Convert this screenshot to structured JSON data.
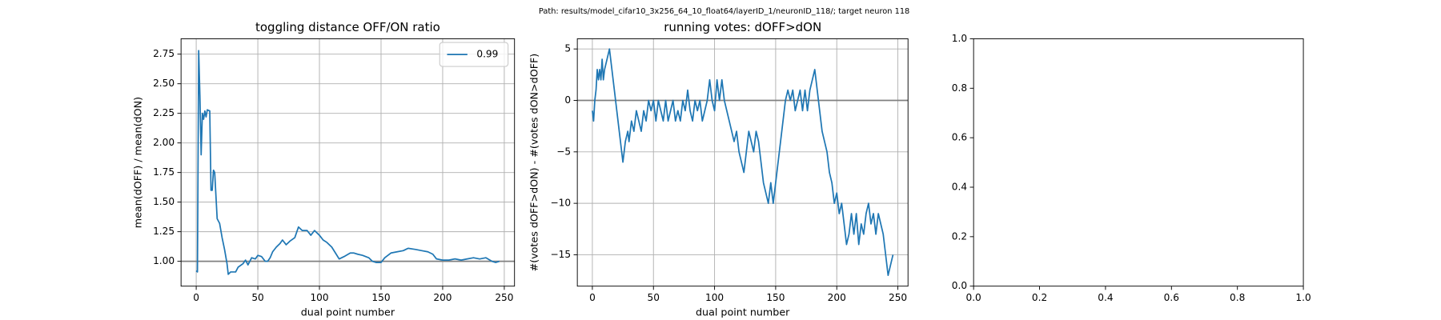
{
  "figure_title": "Path: results/model_cifar10_3x256_64_10_float64/layerID_1/neuronID_118/; target neuron 118",
  "chart_data": [
    {
      "type": "line",
      "title": "toggling distance OFF/ON ratio",
      "xlabel": "dual point number",
      "ylabel": "mean(dOFF) / mean(dON)",
      "x": [
        0,
        1,
        2,
        3,
        4,
        5,
        6,
        7,
        8,
        9,
        11,
        12,
        13,
        14,
        15,
        17,
        19,
        21,
        23,
        25,
        26,
        28,
        32,
        34,
        38,
        40,
        42,
        45,
        48,
        50,
        53,
        56,
        58,
        60,
        62,
        65,
        68,
        70,
        73,
        76,
        80,
        83,
        86,
        90,
        93,
        96,
        100,
        103,
        106,
        110,
        113,
        116,
        120,
        125,
        128,
        131,
        135,
        140,
        143,
        146,
        150,
        153,
        158,
        163,
        168,
        172,
        178,
        183,
        188,
        192,
        195,
        200,
        205,
        210,
        215,
        220,
        225,
        230,
        235,
        240,
        243,
        246
      ],
      "series": [
        {
          "name": "0.99",
          "color": "#1f77b4",
          "values": [
            0.92,
            0.91,
            2.78,
            2.4,
            1.9,
            2.25,
            2.2,
            2.27,
            2.22,
            2.28,
            2.27,
            1.6,
            1.6,
            1.77,
            1.75,
            1.36,
            1.32,
            1.2,
            1.1,
            0.98,
            0.89,
            0.91,
            0.91,
            0.95,
            0.98,
            1.01,
            0.97,
            1.03,
            1.02,
            1.05,
            1.04,
            1.0,
            1.0,
            1.03,
            1.08,
            1.12,
            1.15,
            1.18,
            1.14,
            1.17,
            1.2,
            1.29,
            1.26,
            1.26,
            1.22,
            1.26,
            1.22,
            1.18,
            1.16,
            1.12,
            1.07,
            1.02,
            1.04,
            1.07,
            1.07,
            1.06,
            1.05,
            1.03,
            1.0,
            0.99,
            0.99,
            1.03,
            1.07,
            1.08,
            1.09,
            1.11,
            1.1,
            1.09,
            1.08,
            1.06,
            1.02,
            1.01,
            1.01,
            1.02,
            1.01,
            1.02,
            1.03,
            1.02,
            1.03,
            1.0,
            0.99,
            1.0
          ]
        }
      ],
      "hline": 1,
      "xlim": [
        -12.3,
        258.3
      ],
      "ylim": [
        0.79,
        2.88
      ],
      "xticks": [
        0,
        50,
        100,
        150,
        200,
        250
      ],
      "yticks": [
        {
          "value": 1,
          "label": "1.00"
        },
        {
          "value": 1.25,
          "label": "1.25"
        },
        {
          "value": 1.5,
          "label": "1.50"
        },
        {
          "value": 1.75,
          "label": "1.75"
        },
        {
          "value": 2,
          "label": "2.00"
        },
        {
          "value": 2.25,
          "label": "2.25"
        },
        {
          "value": 2.5,
          "label": "2.50"
        },
        {
          "value": 2.75,
          "label": "2.75"
        }
      ],
      "grid": true,
      "legend": "upper right"
    },
    {
      "type": "line",
      "title": "running votes: dOFF>dON",
      "xlabel": "dual point number",
      "ylabel": "#(votes dOFF>dON) - #(votes dON>dOFF)",
      "x": [
        0,
        1,
        2,
        3,
        4,
        5,
        6,
        7,
        8,
        9,
        10,
        12,
        14,
        16,
        18,
        20,
        22,
        24,
        25,
        27,
        29,
        30,
        32,
        34,
        36,
        38,
        40,
        42,
        44,
        46,
        48,
        50,
        52,
        54,
        56,
        58,
        60,
        62,
        64,
        66,
        68,
        70,
        72,
        74,
        76,
        78,
        80,
        82,
        84,
        86,
        88,
        90,
        92,
        94,
        96,
        98,
        100,
        102,
        104,
        106,
        108,
        110,
        112,
        114,
        116,
        118,
        120,
        122,
        124,
        126,
        128,
        130,
        132,
        134,
        136,
        138,
        140,
        142,
        144,
        146,
        148,
        150,
        152,
        154,
        156,
        158,
        160,
        162,
        164,
        166,
        168,
        170,
        172,
        174,
        176,
        178,
        180,
        182,
        184,
        186,
        188,
        190,
        192,
        194,
        196,
        198,
        200,
        202,
        204,
        206,
        208,
        210,
        212,
        214,
        216,
        218,
        220,
        222,
        224,
        226,
        228,
        230,
        232,
        234,
        236,
        238,
        240,
        242,
        244,
        246
      ],
      "series": [
        {
          "color": "#1f77b4",
          "values": [
            -1,
            -2,
            0,
            1,
            3,
            2,
            3,
            2,
            4,
            2,
            3,
            4,
            5,
            3,
            1,
            -1,
            -3,
            -5,
            -6,
            -4,
            -3,
            -4,
            -2,
            -3,
            -1,
            -2,
            -3,
            -1,
            -2,
            0,
            -1,
            0,
            -2,
            0,
            -1,
            -2,
            0,
            -2,
            -1,
            0,
            -2,
            -1,
            -2,
            0,
            -1,
            1,
            -1,
            -2,
            0,
            -1,
            0,
            -2,
            -1,
            0,
            2,
            0,
            -1,
            2,
            0,
            2,
            0,
            -1,
            -2,
            -3,
            -4,
            -3,
            -5,
            -6,
            -7,
            -5,
            -3,
            -4,
            -5,
            -3,
            -4,
            -6,
            -8,
            -9,
            -10,
            -8,
            -10,
            -8,
            -6,
            -4,
            -2,
            0,
            1,
            0,
            1,
            -1,
            0,
            1,
            -1,
            1,
            -1,
            1,
            2,
            3,
            1,
            -1,
            -3,
            -4,
            -5,
            -7,
            -8,
            -10,
            -9,
            -11,
            -10,
            -12,
            -14,
            -13,
            -11,
            -13,
            -11,
            -14,
            -12,
            -13,
            -11,
            -10,
            -12,
            -11,
            -13,
            -11,
            -12,
            -13,
            -15,
            -17,
            -16,
            -15
          ]
        }
      ],
      "hline": 0,
      "xlim": [
        -12.3,
        258.3
      ],
      "ylim": [
        -18.05,
        5.99
      ],
      "xticks": [
        0,
        50,
        100,
        150,
        200,
        250
      ],
      "yticks": [
        {
          "value": -15,
          "label": "−15"
        },
        {
          "value": -10,
          "label": "−10"
        },
        {
          "value": -5,
          "label": "−5"
        },
        0,
        5
      ],
      "grid": true
    },
    {
      "type": "line",
      "xlim": [
        0,
        1
      ],
      "ylim": [
        0,
        1
      ],
      "xticks": [
        {
          "value": 0,
          "label": "0.0"
        },
        {
          "value": 0.2,
          "label": "0.2"
        },
        {
          "value": 0.4,
          "label": "0.4"
        },
        {
          "value": 0.6,
          "label": "0.6"
        },
        {
          "value": 0.8,
          "label": "0.8"
        },
        {
          "value": 1,
          "label": "1.0"
        }
      ],
      "yticks": [
        {
          "value": 0,
          "label": "0.0"
        },
        {
          "value": 0.2,
          "label": "0.2"
        },
        {
          "value": 0.4,
          "label": "0.4"
        },
        {
          "value": 0.6,
          "label": "0.6"
        },
        {
          "value": 0.8,
          "label": "0.8"
        },
        {
          "value": 1,
          "label": "1.0"
        }
      ],
      "grid": false
    }
  ]
}
